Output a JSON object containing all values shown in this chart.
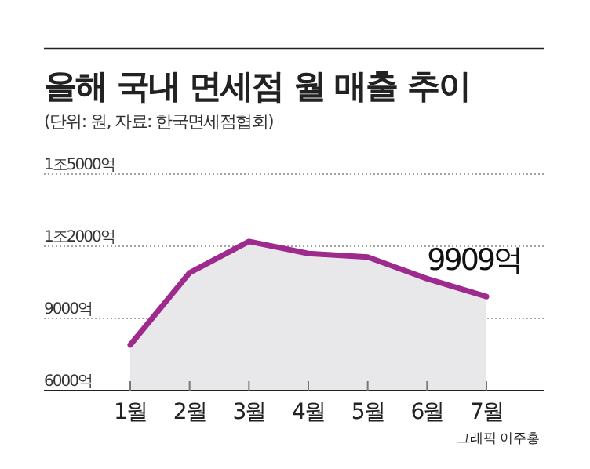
{
  "chart_data": {
    "type": "area",
    "title": "올해 국내 면세점 월 매출 추이",
    "subtitle": "(단위: 원, 자료: 한국면세점협회)",
    "categories": [
      "1월",
      "2월",
      "3월",
      "4월",
      "5월",
      "6월",
      "7월"
    ],
    "series": [
      {
        "color": "#9e2a8e",
        "values": [
          7900,
          10900,
          12200,
          11700,
          11550,
          10650,
          9909
        ]
      }
    ],
    "ylim": [
      6000,
      15000
    ],
    "yticks": [
      {
        "value": 6000,
        "label": "6000억"
      },
      {
        "value": 9000,
        "label": "9000억"
      },
      {
        "value": 12000,
        "label": "1조2000억"
      },
      {
        "value": 15000,
        "label": "1조5000억"
      }
    ],
    "grid": "y",
    "line_style": "solid",
    "annotations": [
      {
        "text": "9909억",
        "x": "7월",
        "y": 9909
      },
      "그래픽 이주홍"
    ]
  }
}
